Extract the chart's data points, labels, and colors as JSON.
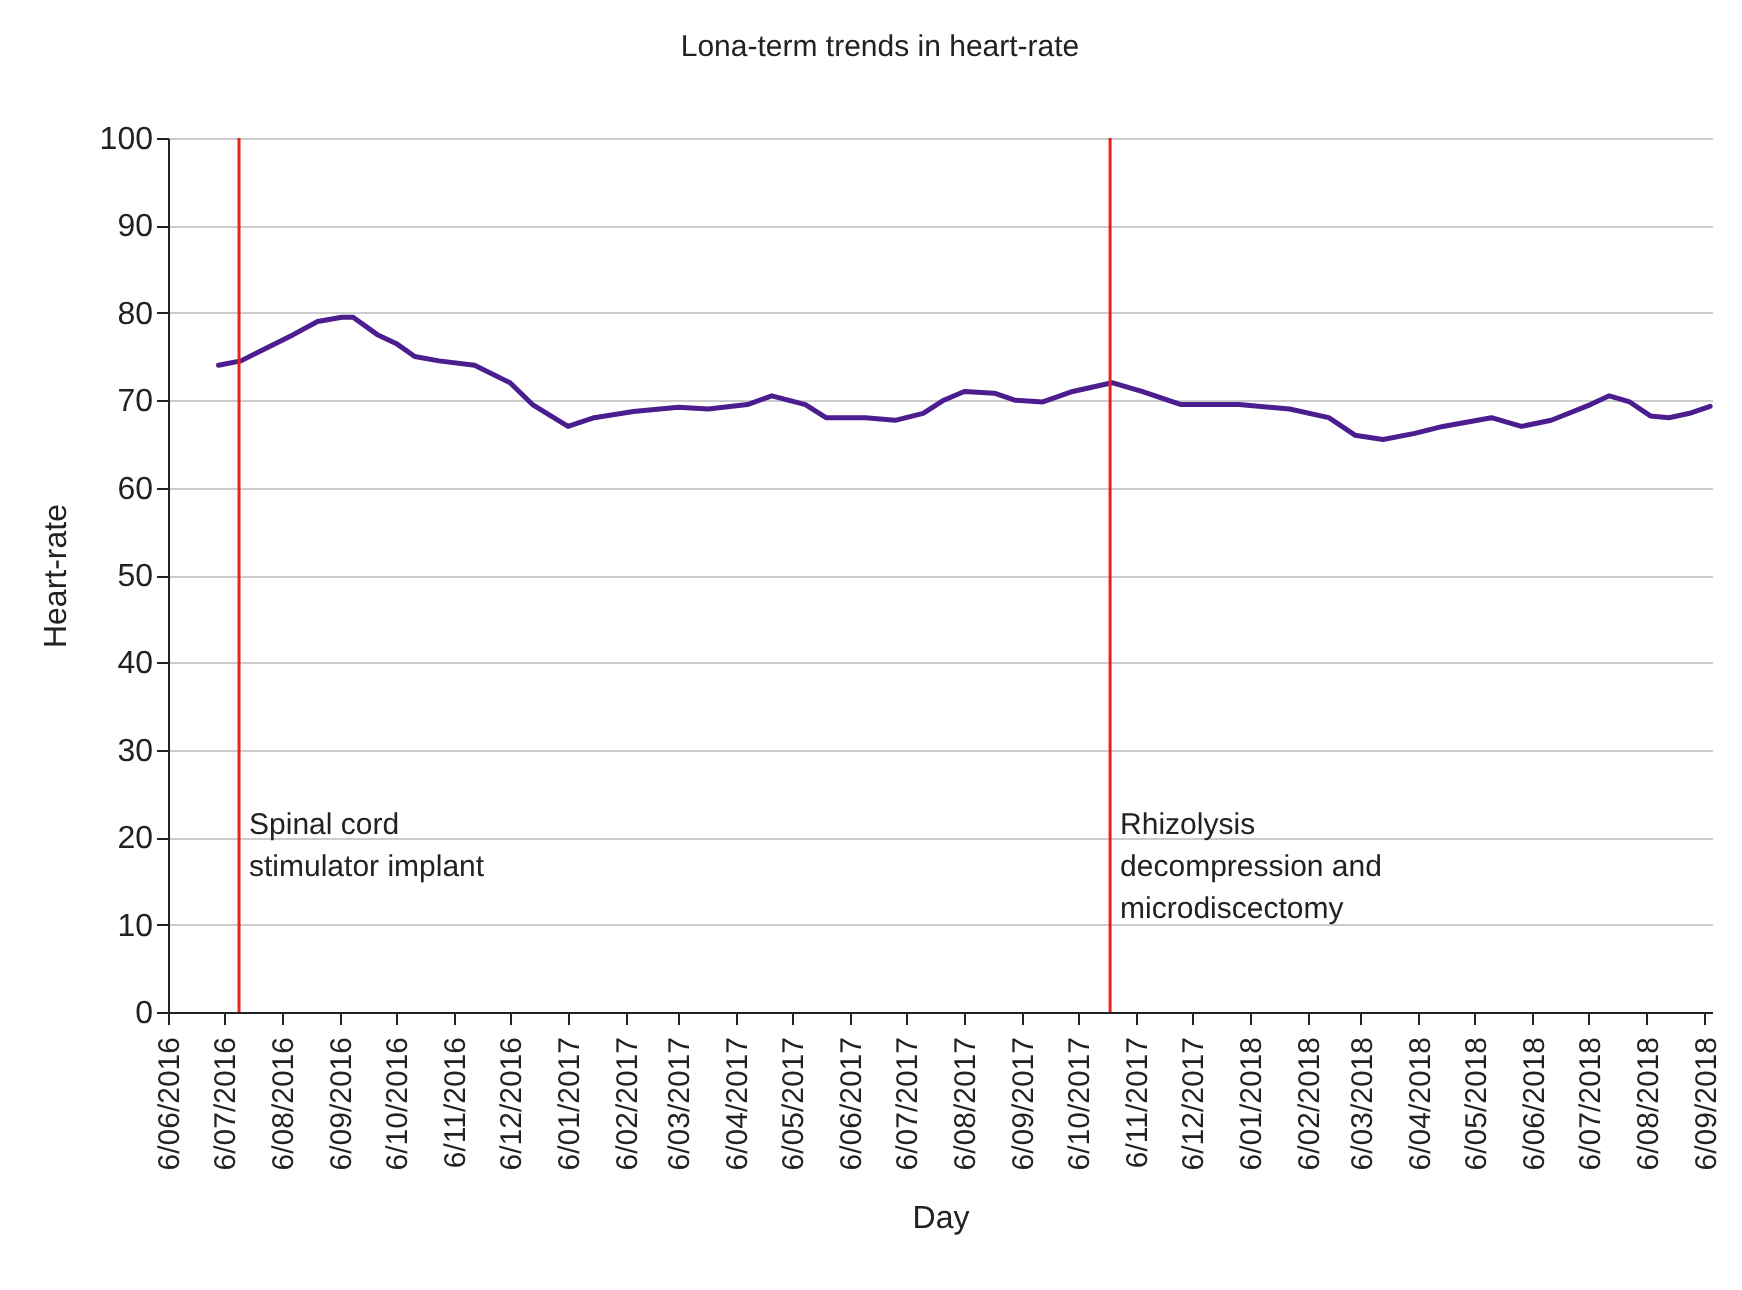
{
  "chart_data": {
    "type": "line",
    "title": "Lona-term trends in heart-rate",
    "xlabel": "Day",
    "ylabel": "Heart-rate",
    "x": [
      "2016-07-03",
      "2016-07-15",
      "2016-07-29",
      "2016-08-12",
      "2016-08-25",
      "2016-09-07",
      "2016-09-13",
      "2016-09-26",
      "2016-10-06",
      "2016-10-16",
      "2016-10-29",
      "2016-11-17",
      "2016-12-06",
      "2016-12-18",
      "2017-01-06",
      "2017-01-20",
      "2017-02-10",
      "2017-03-06",
      "2017-03-22",
      "2017-04-12",
      "2017-04-25",
      "2017-05-13",
      "2017-05-24",
      "2017-06-14",
      "2017-06-30",
      "2017-07-15",
      "2017-07-26",
      "2017-08-06",
      "2017-08-22",
      "2017-09-02",
      "2017-09-17",
      "2017-10-03",
      "2017-10-24",
      "2017-11-09",
      "2017-11-30",
      "2017-12-15",
      "2017-12-31",
      "2018-01-27",
      "2018-02-17",
      "2018-03-03",
      "2018-03-18",
      "2018-04-04",
      "2018-04-19",
      "2018-05-15",
      "2018-05-31",
      "2018-06-16",
      "2018-07-07",
      "2018-07-17",
      "2018-07-28",
      "2018-08-08",
      "2018-08-18",
      "2018-08-29",
      "2018-09-09"
    ],
    "series": [
      {
        "color": "#4b1d8f",
        "values": [
          74,
          74.5,
          76,
          77.5,
          79,
          79.5,
          79.5,
          77.5,
          76.5,
          75,
          74.5,
          74,
          72,
          69.5,
          67,
          68,
          68.7,
          69.2,
          69,
          69.5,
          70.5,
          69.5,
          68,
          68,
          67.7,
          68.5,
          70,
          71,
          70.8,
          70,
          69.8,
          71,
          72,
          71,
          69.5,
          69.5,
          69.5,
          69,
          68,
          66,
          65.5,
          66.2,
          67,
          68,
          67,
          67.7,
          69.5,
          70.5,
          69.8,
          68.2,
          68,
          68.5,
          69.3
        ]
      }
    ],
    "xlim": [
      "2016-06-06",
      "2018-09-10"
    ],
    "xticks": [
      {
        "value": "2016-06-06",
        "label": "6/06/2016"
      },
      {
        "value": "2016-07-06",
        "label": "6/07/2016"
      },
      {
        "value": "2016-08-06",
        "label": "6/08/2016"
      },
      {
        "value": "2016-09-06",
        "label": "6/09/2016"
      },
      {
        "value": "2016-10-06",
        "label": "6/10/2016"
      },
      {
        "value": "2016-11-06",
        "label": "6/11/2016"
      },
      {
        "value": "2016-12-06",
        "label": "6/12/2016"
      },
      {
        "value": "2017-01-06",
        "label": "6/01/2017"
      },
      {
        "value": "2017-02-06",
        "label": "6/02/2017"
      },
      {
        "value": "2017-03-06",
        "label": "6/03/2017"
      },
      {
        "value": "2017-04-06",
        "label": "6/04/2017"
      },
      {
        "value": "2017-05-06",
        "label": "6/05/2017"
      },
      {
        "value": "2017-06-06",
        "label": "6/06/2017"
      },
      {
        "value": "2017-07-06",
        "label": "6/07/2017"
      },
      {
        "value": "2017-08-06",
        "label": "6/08/2017"
      },
      {
        "value": "2017-09-06",
        "label": "6/09/2017"
      },
      {
        "value": "2017-10-06",
        "label": "6/10/2017"
      },
      {
        "value": "2017-11-06",
        "label": "6/11/2017"
      },
      {
        "value": "2017-12-06",
        "label": "6/12/2017"
      },
      {
        "value": "2018-01-06",
        "label": "6/01/2018"
      },
      {
        "value": "2018-02-06",
        "label": "6/02/2018"
      },
      {
        "value": "2018-03-06",
        "label": "6/03/2018"
      },
      {
        "value": "2018-04-06",
        "label": "6/04/2018"
      },
      {
        "value": "2018-05-06",
        "label": "6/05/2018"
      },
      {
        "value": "2018-06-06",
        "label": "6/06/2018"
      },
      {
        "value": "2018-07-06",
        "label": "6/07/2018"
      },
      {
        "value": "2018-08-06",
        "label": "6/08/2018"
      },
      {
        "value": "2018-09-06",
        "label": "6/09/2018"
      }
    ],
    "ylim": [
      0,
      100
    ],
    "yticks": [
      0,
      10,
      20,
      30,
      40,
      50,
      60,
      70,
      80,
      90,
      100
    ],
    "grid": "y",
    "ref_lines": [
      {
        "axis": "x",
        "value": "2016-07-14",
        "label": "Spinal cord\nstimulator implant",
        "color": "#e8231c"
      },
      {
        "axis": "x",
        "value": "2017-10-23",
        "label": "Rhizolysis\ndecompression and\nmicrodiscectomy",
        "color": "#e8231c"
      }
    ]
  }
}
